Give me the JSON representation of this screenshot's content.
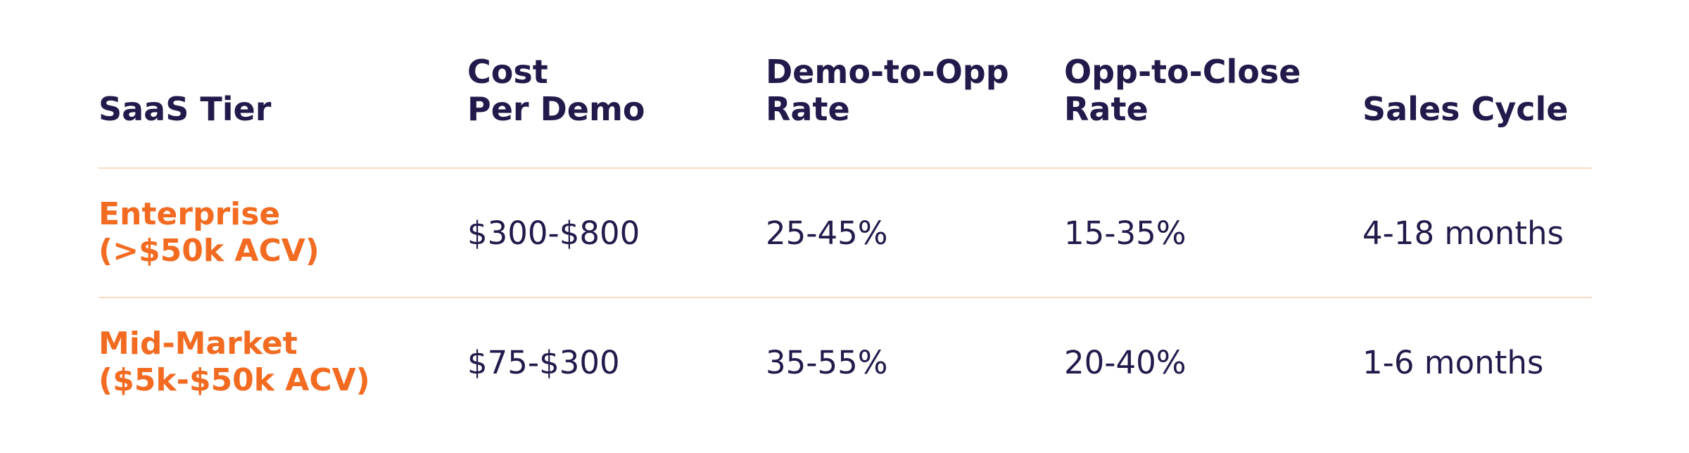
{
  "table": {
    "headers": [
      [
        "SaaS Tier"
      ],
      [
        "Cost",
        "Per Demo"
      ],
      [
        "Demo-to-Opp",
        "Rate"
      ],
      [
        "Opp-to-Close",
        "Rate"
      ],
      [
        "Sales Cycle"
      ]
    ],
    "rows": [
      {
        "tier": [
          "Enterprise",
          "(>$50k ACV)"
        ],
        "cost_per_demo": "$300-$800",
        "demo_to_opp_rate": "25-45%",
        "opp_to_close_rate": "15-35%",
        "sales_cycle": "4-18 months"
      },
      {
        "tier": [
          "Mid-Market",
          "($5k-$50k ACV)"
        ],
        "cost_per_demo": "$75-$300",
        "demo_to_opp_rate": "35-55%",
        "opp_to_close_rate": "20-40%",
        "sales_cycle": "1-6 months"
      }
    ]
  },
  "colors": {
    "header_text": "#231a4b",
    "tier_text": "#f26b21",
    "divider": "#f9d9c3",
    "background": "#ffffff"
  }
}
